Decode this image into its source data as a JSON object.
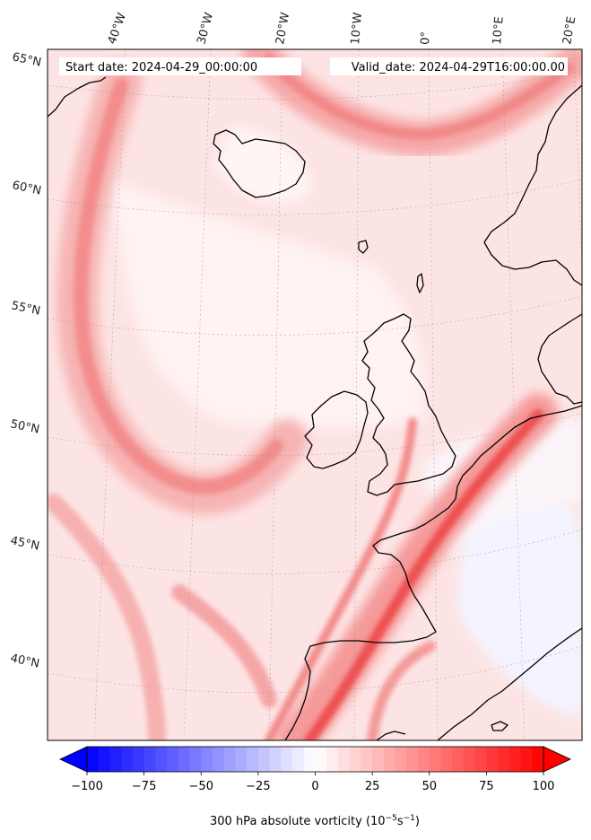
{
  "header": {
    "start_label": "Start date: 2024-04-29_00:00:00",
    "valid_label": "Valid_date: 2024-04-29T16:00:00.00"
  },
  "map": {
    "lon_labels": [
      "40°W",
      "30°W",
      "20°W",
      "10°W",
      "0°",
      "10°E",
      "20°E"
    ],
    "lat_labels": [
      "65°N",
      "60°N",
      "55°N",
      "50°N",
      "45°N",
      "40°N"
    ],
    "field": "300 hPa absolute vorticity"
  },
  "colorbar": {
    "label": "300 hPa absolute vorticity (10",
    "label_exp1": "−5",
    "label_mid": "s",
    "label_exp2": "−1",
    "label_end": ")",
    "min": -100,
    "max": 100,
    "tick_values": [
      -100,
      -75,
      -50,
      -25,
      0,
      25,
      50,
      75,
      100
    ],
    "tick_labels": [
      "−100",
      "−75",
      "−50",
      "−25",
      "0",
      "25",
      "50",
      "75",
      "100"
    ],
    "negative_color": "#0000ff",
    "zero_color": "#ffffff",
    "positive_color": "#ff0000",
    "extend": "both"
  }
}
